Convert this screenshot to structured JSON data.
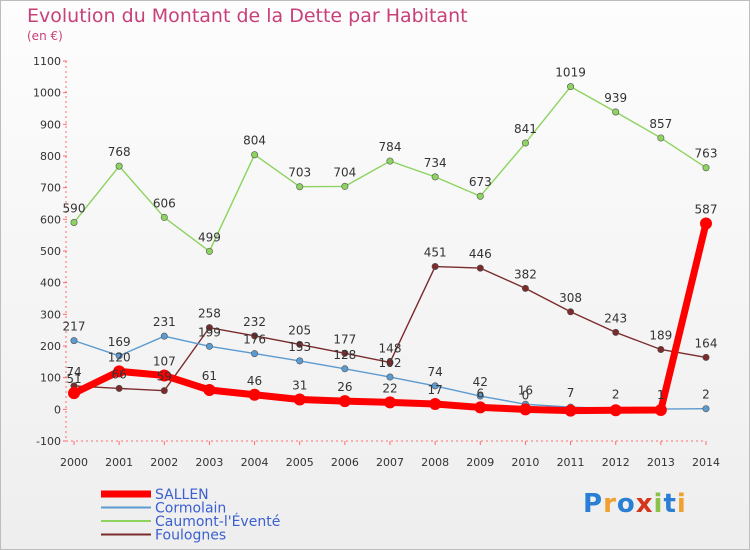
{
  "chart_data": {
    "type": "line",
    "title": "Evolution du Montant de la Dette par Habitant",
    "subtitle": "(en €)",
    "categories": [
      "2000",
      "2001",
      "2002",
      "2003",
      "2004",
      "2005",
      "2006",
      "2007",
      "2008",
      "2009",
      "2010",
      "2011",
      "2012",
      "2013",
      "2014"
    ],
    "ylim": [
      -100,
      1100
    ],
    "yticks": [
      "-100",
      "0",
      "100",
      "200",
      "300",
      "400",
      "500",
      "600",
      "700",
      "800",
      "900",
      "1000",
      "1100"
    ],
    "grid": false,
    "legend": "bottom-left",
    "series": [
      {
        "name": "SALLEN",
        "color": "#ff0000",
        "values": [
          51,
          120,
          107,
          61,
          46,
          31,
          26,
          22,
          17,
          6,
          0,
          -4,
          -3,
          -2,
          587
        ],
        "labels": [
          "51",
          "120",
          "107",
          "61",
          "46",
          "31",
          "26",
          "22",
          "17",
          "6",
          "0",
          "",
          "",
          "",
          "587"
        ]
      },
      {
        "name": "Cormolain",
        "color": "#5b9bd0",
        "values": [
          217,
          169,
          231,
          199,
          176,
          153,
          128,
          102,
          74,
          42,
          16,
          7,
          2,
          1,
          2
        ],
        "labels": [
          "217",
          "169",
          "231",
          "199",
          "176",
          "153",
          "128",
          "102",
          "74",
          "42",
          "16",
          "7",
          "2",
          "1",
          "2"
        ]
      },
      {
        "name": "Caumont-l'Éventé",
        "color": "#8dd35f",
        "values": [
          590,
          768,
          606,
          499,
          804,
          703,
          704,
          784,
          734,
          673,
          841,
          1019,
          939,
          857,
          763
        ],
        "labels": [
          "590",
          "768",
          "606",
          "499",
          "804",
          "703",
          "704",
          "784",
          "734",
          "673",
          "841",
          "1019",
          "939",
          "857",
          "763"
        ]
      },
      {
        "name": "Foulognes",
        "color": "#7b2b2b",
        "values": [
          74,
          66,
          59,
          258,
          232,
          205,
          177,
          148,
          451,
          446,
          382,
          308,
          243,
          189,
          164
        ],
        "labels": [
          "74",
          "66",
          "59",
          "258",
          "232",
          "205",
          "177",
          "148",
          "451",
          "446",
          "382",
          "308",
          "243",
          "189",
          "164"
        ]
      }
    ]
  },
  "logo": {
    "text": "Proxiti"
  }
}
